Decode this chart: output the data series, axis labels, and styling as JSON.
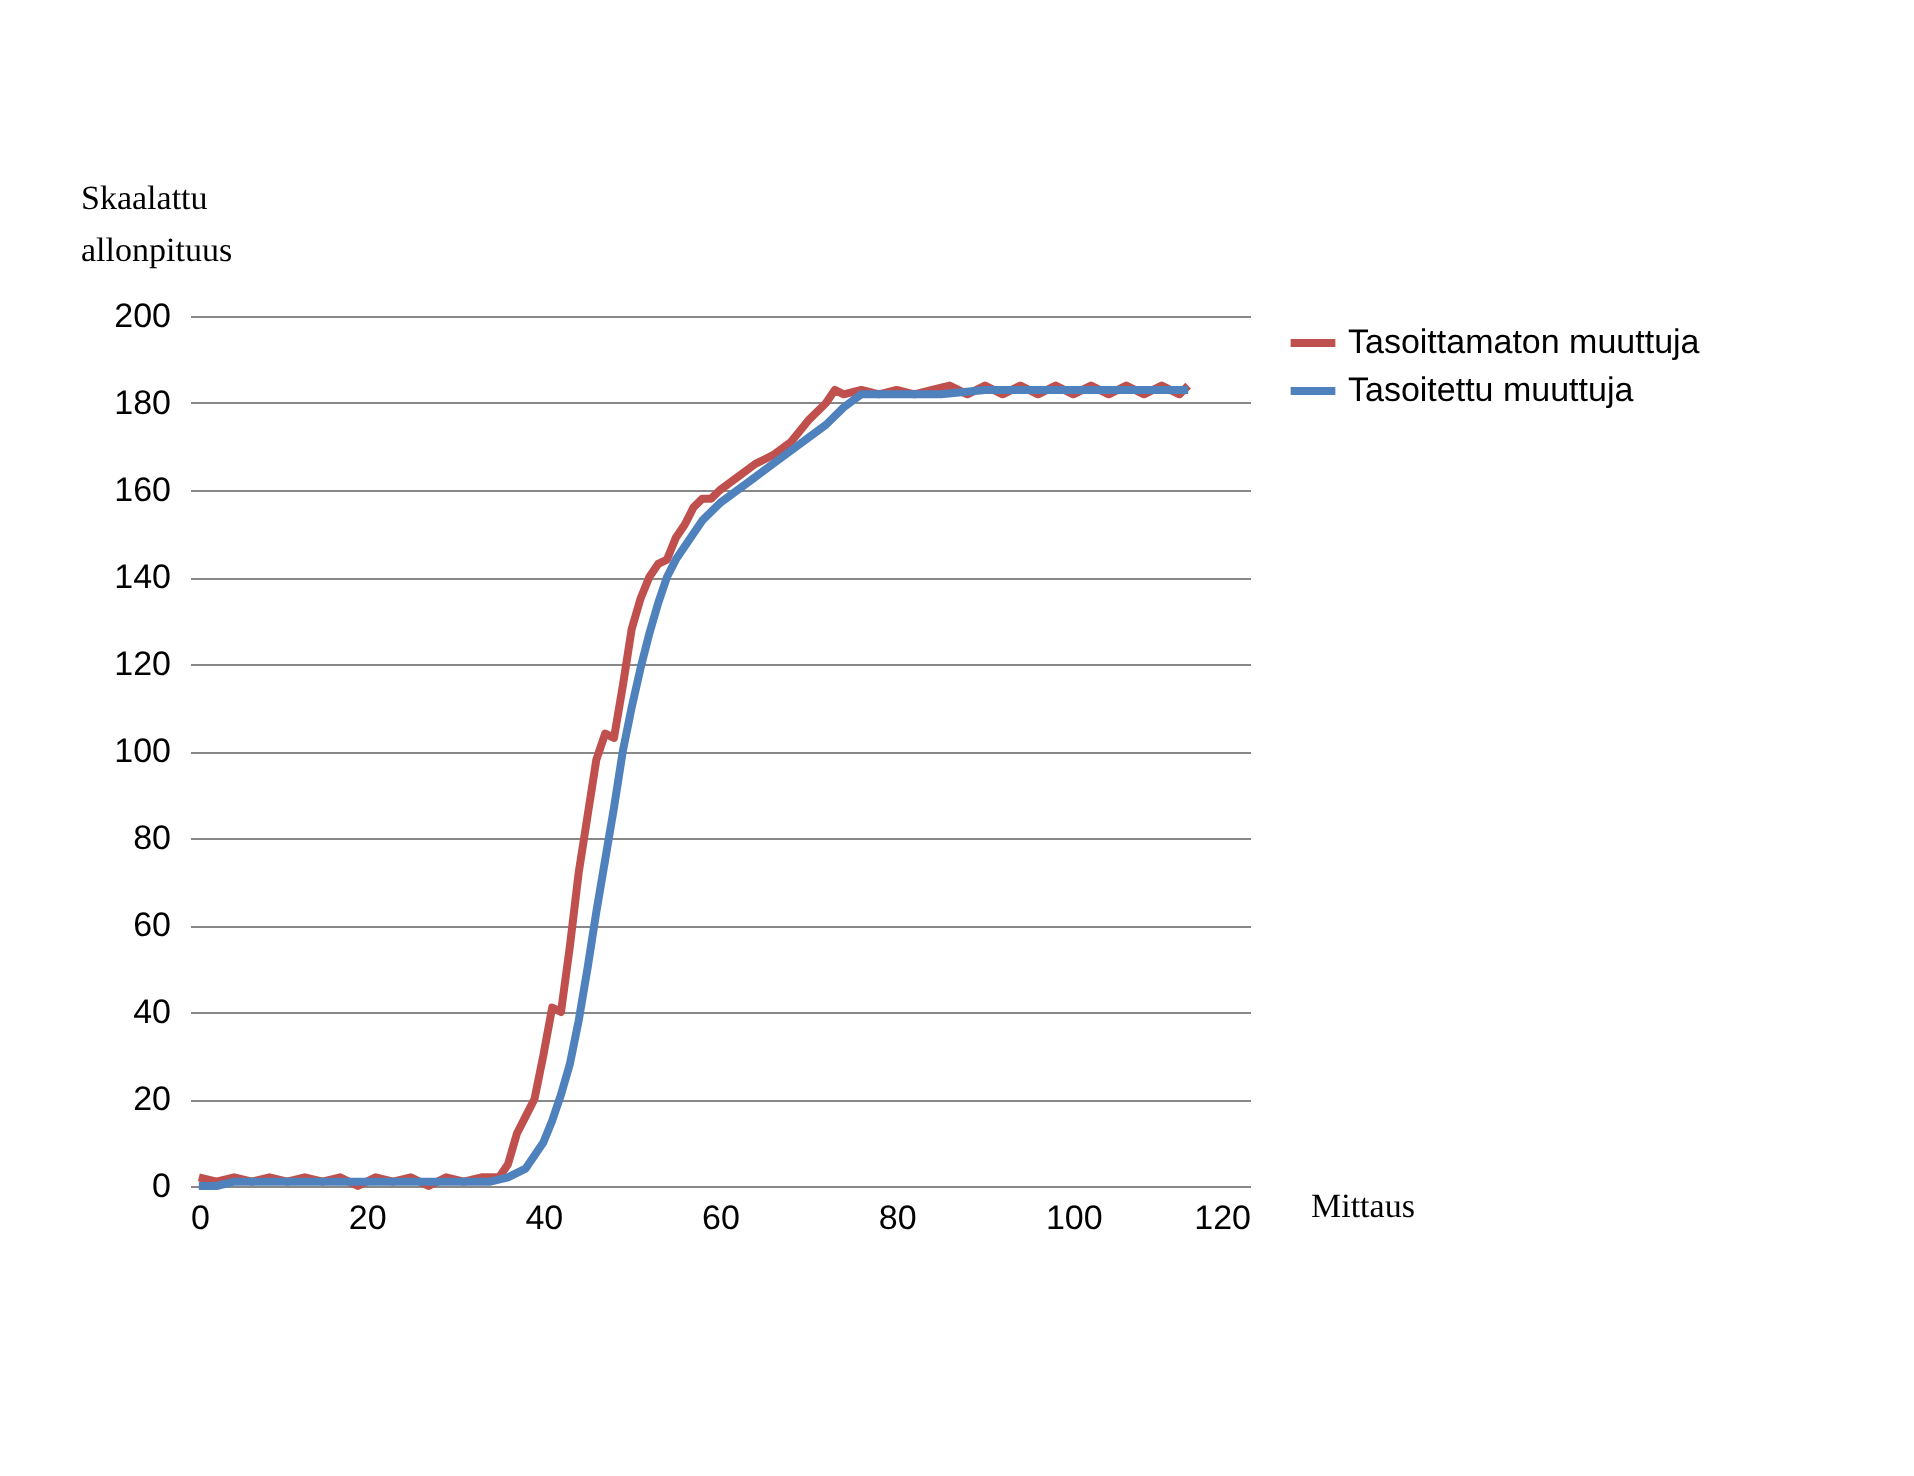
{
  "chart_data": {
    "type": "line",
    "xlabel": "Mittaus",
    "ylabel": "Skaalattu allonpituus",
    "xlim": [
      0,
      120
    ],
    "xticks": [
      0,
      20,
      40,
      60,
      80,
      100,
      120
    ],
    "ylim": [
      0,
      200
    ],
    "yticks": [
      0,
      20,
      40,
      60,
      80,
      100,
      120,
      140,
      160,
      180,
      200
    ],
    "grid": "y",
    "legend": "right",
    "marker": "none",
    "line_style": "solid",
    "series": [
      {
        "name": "Tasoittamaton muuttuja",
        "color": "#c0504d",
        "x": [
          1,
          3,
          5,
          7,
          9,
          11,
          13,
          15,
          17,
          19,
          21,
          23,
          25,
          27,
          29,
          31,
          33,
          35,
          36,
          37,
          38,
          39,
          40,
          41,
          42,
          43,
          44,
          45,
          46,
          47,
          48,
          49,
          50,
          51,
          52,
          53,
          54,
          55,
          56,
          57,
          58,
          59,
          60,
          62,
          64,
          66,
          68,
          70,
          72,
          73,
          74,
          76,
          78,
          80,
          82,
          84,
          86,
          88,
          90,
          92,
          94,
          96,
          98,
          100,
          102,
          104,
          106,
          108,
          110,
          112,
          113
        ],
        "values": [
          2,
          1,
          2,
          1,
          2,
          1,
          2,
          1,
          2,
          0,
          2,
          1,
          2,
          0,
          2,
          1,
          2,
          2,
          5,
          12,
          16,
          20,
          30,
          41,
          40,
          55,
          72,
          85,
          98,
          104,
          103,
          115,
          128,
          135,
          140,
          143,
          144,
          149,
          152,
          156,
          158,
          158,
          160,
          163,
          166,
          168,
          171,
          176,
          180,
          183,
          182,
          183,
          182,
          183,
          182,
          183,
          184,
          182,
          184,
          182,
          184,
          182,
          184,
          182,
          184,
          182,
          184,
          182,
          184,
          182,
          184
        ]
      },
      {
        "name": "Tasoitettu muuttuja",
        "color": "#4f81bd",
        "x": [
          1,
          3,
          5,
          10,
          20,
          30,
          34,
          36,
          38,
          40,
          41,
          42,
          43,
          44,
          45,
          46,
          47,
          48,
          49,
          50,
          51,
          52,
          53,
          54,
          55,
          56,
          57,
          58,
          60,
          62,
          64,
          66,
          68,
          70,
          72,
          74,
          76,
          78,
          80,
          85,
          90,
          95,
          100,
          105,
          110,
          113
        ],
        "values": [
          0,
          0,
          1,
          1,
          1,
          1,
          1,
          2,
          4,
          10,
          15,
          21,
          28,
          38,
          50,
          63,
          75,
          87,
          100,
          110,
          119,
          127,
          134,
          140,
          144,
          147,
          150,
          153,
          157,
          160,
          163,
          166,
          169,
          172,
          175,
          179,
          182,
          182,
          182,
          182,
          183,
          183,
          183,
          183,
          183,
          183
        ]
      }
    ]
  }
}
